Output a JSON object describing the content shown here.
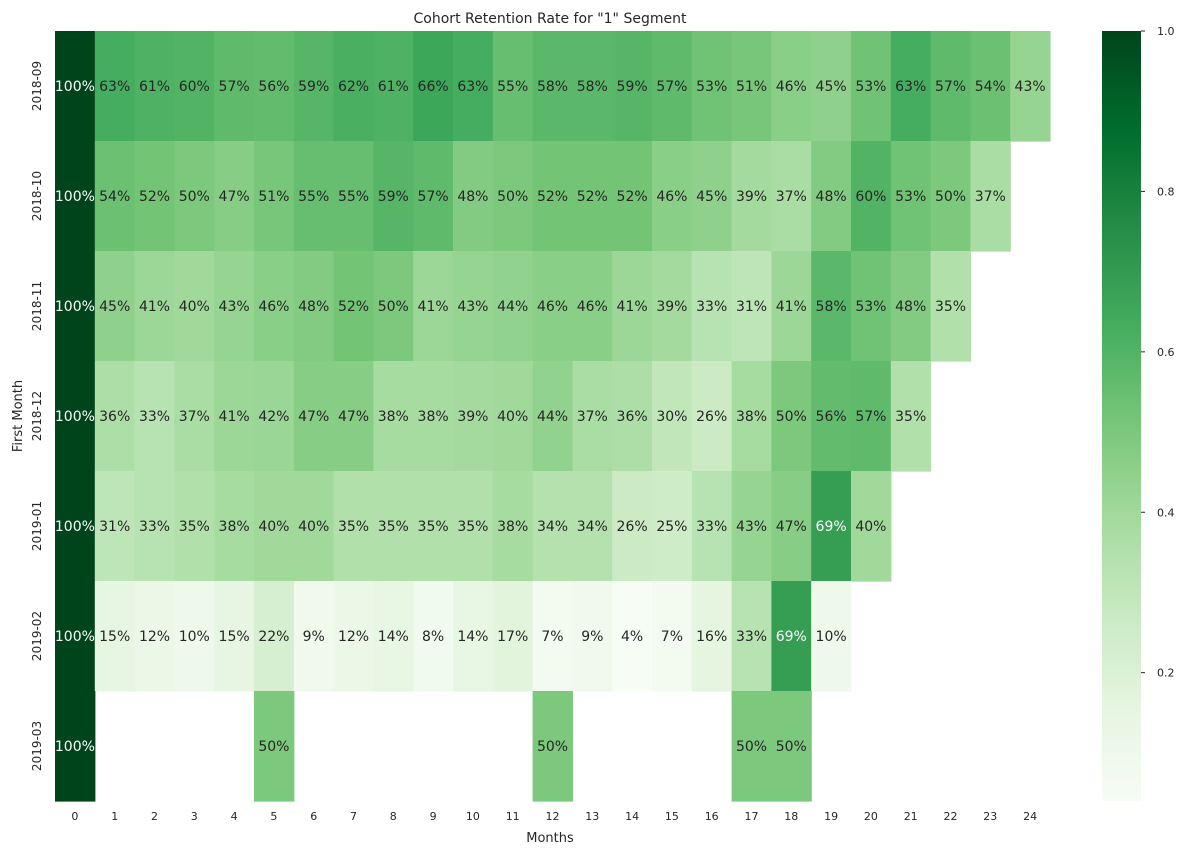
{
  "chart_data": {
    "type": "heatmap",
    "title": "Cohort Retention Rate for \"1\" Segment",
    "xlabel": "Months",
    "ylabel": "First Month",
    "x": [
      0,
      1,
      2,
      3,
      4,
      5,
      6,
      7,
      8,
      9,
      10,
      11,
      12,
      13,
      14,
      15,
      16,
      17,
      18,
      19,
      20,
      21,
      22,
      23,
      24
    ],
    "y": [
      "2018-09",
      "2018-10",
      "2018-11",
      "2018-12",
      "2019-01",
      "2019-02",
      "2019-03"
    ],
    "values": [
      [
        100,
        63,
        61,
        60,
        57,
        56,
        59,
        62,
        61,
        66,
        63,
        55,
        58,
        58,
        59,
        57,
        53,
        51,
        46,
        45,
        53,
        63,
        57,
        54,
        43
      ],
      [
        100,
        54,
        52,
        50,
        47,
        51,
        55,
        55,
        59,
        57,
        48,
        50,
        52,
        52,
        52,
        46,
        45,
        39,
        37,
        48,
        60,
        53,
        50,
        37,
        null
      ],
      [
        100,
        45,
        41,
        40,
        43,
        46,
        48,
        52,
        50,
        41,
        43,
        44,
        46,
        46,
        41,
        39,
        33,
        31,
        41,
        58,
        53,
        48,
        35,
        null,
        null
      ],
      [
        100,
        36,
        33,
        37,
        41,
        42,
        47,
        47,
        38,
        38,
        39,
        40,
        44,
        37,
        36,
        30,
        26,
        38,
        50,
        56,
        57,
        35,
        null,
        null,
        null
      ],
      [
        100,
        31,
        33,
        35,
        38,
        40,
        40,
        35,
        35,
        35,
        35,
        38,
        34,
        34,
        26,
        25,
        33,
        43,
        47,
        69,
        40,
        null,
        null,
        null,
        null
      ],
      [
        100,
        15,
        12,
        10,
        15,
        22,
        9,
        12,
        14,
        8,
        14,
        17,
        7,
        9,
        4,
        7,
        16,
        33,
        69,
        10,
        null,
        null,
        null,
        null,
        null
      ],
      [
        100,
        null,
        null,
        null,
        null,
        50,
        null,
        null,
        null,
        null,
        null,
        null,
        50,
        null,
        null,
        null,
        null,
        50,
        50,
        null,
        null,
        null,
        null,
        null,
        null
      ]
    ],
    "value_format": "percent",
    "colormap": "Greens",
    "colorbar": {
      "range": [
        0.04,
        1.0
      ],
      "ticks": [
        "0.2",
        "0.4",
        "0.6",
        "0.8",
        "1.0"
      ],
      "tick_values": [
        0.2,
        0.4,
        0.6,
        0.8,
        1.0
      ]
    }
  }
}
